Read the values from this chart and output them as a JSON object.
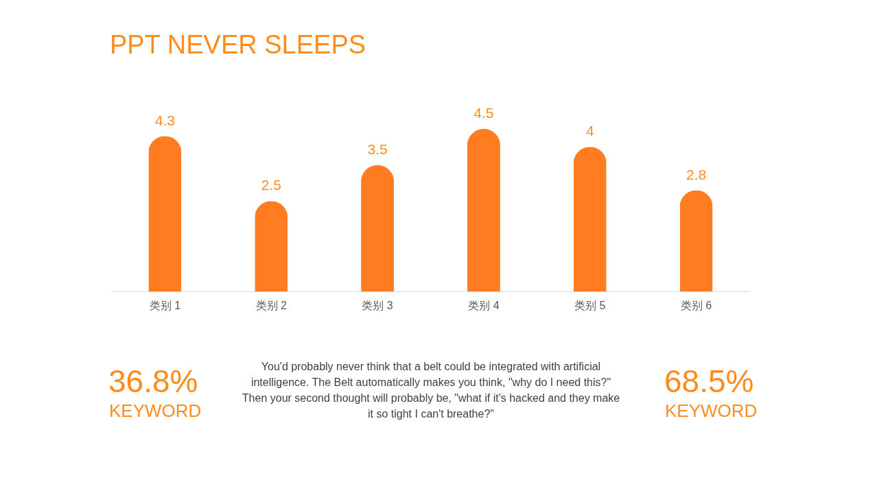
{
  "chart_data": {
    "type": "bar",
    "title": "PPT NEVER SLEEPS",
    "categories": [
      "类别 1",
      "类别 2",
      "类别 3",
      "类别 4",
      "类别 5",
      "类别 6"
    ],
    "values": [
      4.3,
      2.5,
      3.5,
      4.5,
      4,
      2.8
    ],
    "color": "#ff7d20",
    "data_labels": true,
    "tick_labels": "x",
    "annotations": [
      "36.8%",
      "KEYWORD",
      "You'd probably never think that a belt could be integrated with artificial intelligence. The Belt automatically makes you think, \"why do I need this?\" Then your second thought will probably be, \"what if it's hacked and they make it so tight I can't breathe?\"",
      "68.5%",
      "KEYWORD"
    ]
  }
}
